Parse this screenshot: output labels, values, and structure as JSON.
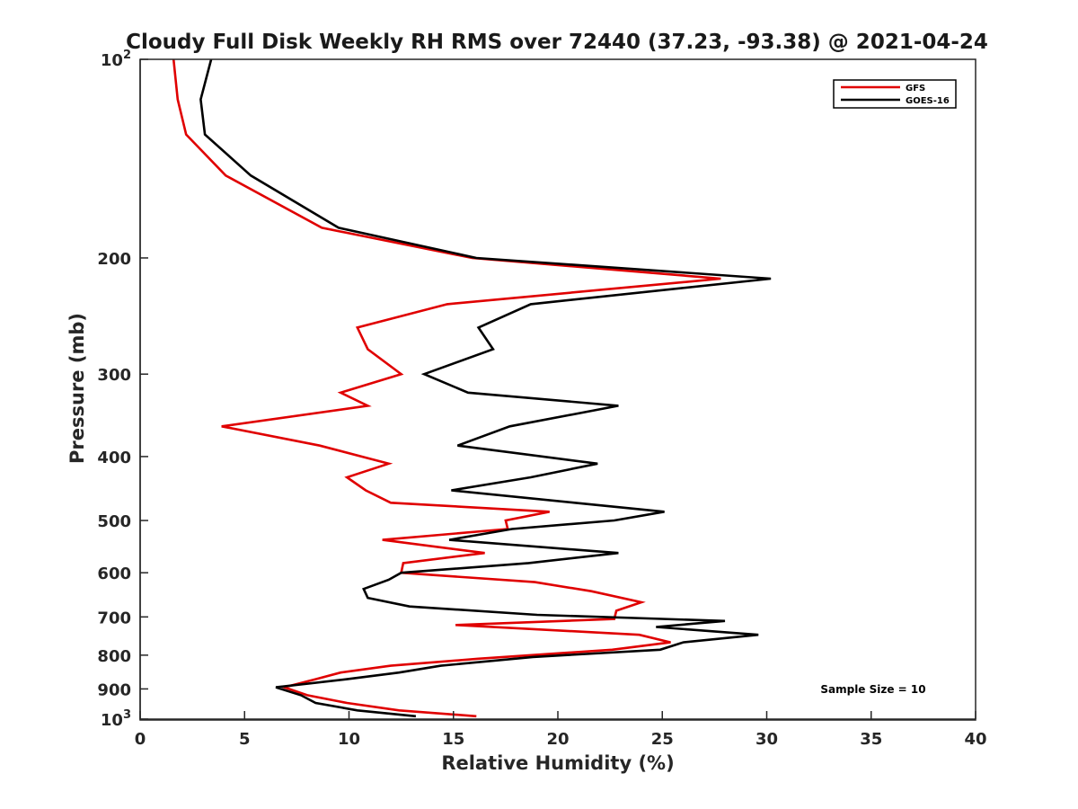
{
  "chart_data": {
    "type": "line",
    "title": "Cloudy Full Disk Weekly RH RMS over 72440 (37.23, -93.38) @ 2021-04-24",
    "xlabel": "Relative Humidity (%)",
    "ylabel": "Pressure (mb)",
    "xlim": [
      0,
      40
    ],
    "ylim": [
      100,
      1000
    ],
    "yscale": "log",
    "y_reversed": true,
    "grid": false,
    "legend_position": "top-right",
    "xticks": [
      0,
      5,
      10,
      15,
      20,
      25,
      30,
      35,
      40
    ],
    "yticks": [
      {
        "value": 100,
        "base": "10",
        "exp": "2",
        "label": ""
      },
      {
        "value": 200,
        "base": "",
        "exp": "",
        "label": "200"
      },
      {
        "value": 300,
        "base": "",
        "exp": "",
        "label": "300"
      },
      {
        "value": 400,
        "base": "",
        "exp": "",
        "label": "400"
      },
      {
        "value": 500,
        "base": "",
        "exp": "",
        "label": "500"
      },
      {
        "value": 600,
        "base": "",
        "exp": "",
        "label": "600"
      },
      {
        "value": 700,
        "base": "",
        "exp": "",
        "label": "700"
      },
      {
        "value": 800,
        "base": "",
        "exp": "",
        "label": "800"
      },
      {
        "value": 900,
        "base": "",
        "exp": "",
        "label": "900"
      },
      {
        "value": 1000,
        "base": "10",
        "exp": "3",
        "label": ""
      }
    ],
    "series": [
      {
        "name": "GFS",
        "color": "#e00000",
        "points": [
          [
            1.6,
            100
          ],
          [
            1.8,
            115
          ],
          [
            2.2,
            130
          ],
          [
            4.1,
            150
          ],
          [
            8.7,
            180
          ],
          [
            15.9,
            200
          ],
          [
            27.8,
            215
          ],
          [
            14.7,
            235
          ],
          [
            10.4,
            255
          ],
          [
            10.9,
            275
          ],
          [
            12.5,
            300
          ],
          [
            9.6,
            320
          ],
          [
            10.9,
            335
          ],
          [
            3.9,
            360
          ],
          [
            8.6,
            385
          ],
          [
            11.9,
            410
          ],
          [
            9.9,
            430
          ],
          [
            10.8,
            450
          ],
          [
            12.0,
            470
          ],
          [
            19.6,
            485
          ],
          [
            17.5,
            500
          ],
          [
            17.6,
            515
          ],
          [
            11.6,
            535
          ],
          [
            16.5,
            560
          ],
          [
            12.6,
            580
          ],
          [
            12.5,
            600
          ],
          [
            18.9,
            620
          ],
          [
            21.6,
            640
          ],
          [
            24.0,
            665
          ],
          [
            22.8,
            685
          ],
          [
            22.7,
            705
          ],
          [
            15.1,
            720
          ],
          [
            23.9,
            745
          ],
          [
            25.4,
            765
          ],
          [
            22.6,
            785
          ],
          [
            16.2,
            810
          ],
          [
            12.0,
            830
          ],
          [
            9.6,
            850
          ],
          [
            8.4,
            870
          ],
          [
            6.9,
            895
          ],
          [
            8.0,
            920
          ],
          [
            9.9,
            945
          ],
          [
            12.4,
            970
          ],
          [
            16.1,
            990
          ]
        ]
      },
      {
        "name": "GOES-16",
        "color": "#000000",
        "points": [
          [
            3.4,
            100
          ],
          [
            2.9,
            115
          ],
          [
            3.1,
            130
          ],
          [
            5.3,
            150
          ],
          [
            9.5,
            180
          ],
          [
            16.1,
            200
          ],
          [
            30.2,
            215
          ],
          [
            18.7,
            235
          ],
          [
            16.2,
            255
          ],
          [
            16.9,
            275
          ],
          [
            13.6,
            300
          ],
          [
            15.7,
            320
          ],
          [
            22.9,
            335
          ],
          [
            17.7,
            360
          ],
          [
            15.2,
            385
          ],
          [
            21.9,
            410
          ],
          [
            18.7,
            430
          ],
          [
            14.9,
            450
          ],
          [
            20.8,
            470
          ],
          [
            25.1,
            485
          ],
          [
            22.7,
            500
          ],
          [
            17.8,
            515
          ],
          [
            14.8,
            535
          ],
          [
            22.9,
            560
          ],
          [
            18.6,
            580
          ],
          [
            12.5,
            600
          ],
          [
            11.9,
            615
          ],
          [
            10.7,
            635
          ],
          [
            10.9,
            655
          ],
          [
            12.9,
            675
          ],
          [
            19.0,
            695
          ],
          [
            28.0,
            710
          ],
          [
            24.7,
            725
          ],
          [
            29.6,
            745
          ],
          [
            26.0,
            765
          ],
          [
            24.9,
            785
          ],
          [
            18.8,
            805
          ],
          [
            14.4,
            830
          ],
          [
            12.4,
            850
          ],
          [
            9.9,
            870
          ],
          [
            6.5,
            895
          ],
          [
            7.7,
            920
          ],
          [
            8.4,
            945
          ],
          [
            10.4,
            970
          ],
          [
            13.2,
            990
          ]
        ]
      }
    ],
    "annotations": [
      "Sample Size = 10"
    ]
  }
}
